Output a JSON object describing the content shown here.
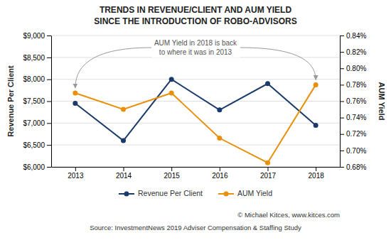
{
  "chart_data": {
    "type": "line",
    "title": "TRENDS IN REVENUE/CLIENT AND AUM YIELD",
    "subtitle": "SINCE THE INTRODUCTION OF ROBO-ADVISORS",
    "x": [
      2013,
      2014,
      2015,
      2016,
      2017,
      2018
    ],
    "series": [
      {
        "name": "Revenue Per Client",
        "color": "#1a3a6b",
        "marker": "circle",
        "values": [
          7450,
          6600,
          8000,
          7300,
          7900,
          6950
        ]
      },
      {
        "name": "AUM Yield",
        "color": "#e8900a",
        "marker": "circle",
        "axis": "y2",
        "values": [
          0.0077,
          0.0075,
          0.0077,
          0.00715,
          0.00685,
          0.0078
        ]
      }
    ],
    "xlim": [
      2012.5,
      2018.5
    ],
    "xticks": [
      2013,
      2014,
      2015,
      2016,
      2017,
      2018
    ],
    "y_label": "Revenue Per Client",
    "ylim": [
      6000,
      9000
    ],
    "yticks": [
      {
        "value": 6000,
        "label": "$6,000"
      },
      {
        "value": 6500,
        "label": "$6,500"
      },
      {
        "value": 7000,
        "label": "$7,000"
      },
      {
        "value": 7500,
        "label": "$7,500"
      },
      {
        "value": 8000,
        "label": "$8,000"
      },
      {
        "value": 8500,
        "label": "$8,500"
      },
      {
        "value": 9000,
        "label": "$9,000"
      }
    ],
    "y2_label": "AUM Yield",
    "y2lim": [
      0.0068,
      0.0084
    ],
    "y2ticks": [
      {
        "value": 0.0068,
        "label": "0.68%"
      },
      {
        "value": 0.007,
        "label": "0.70%"
      },
      {
        "value": 0.0072,
        "label": "0.72%"
      },
      {
        "value": 0.0074,
        "label": "0.74%"
      },
      {
        "value": 0.0076,
        "label": "0.76%"
      },
      {
        "value": 0.0078,
        "label": "0.78%"
      },
      {
        "value": 0.008,
        "label": "0.80%"
      },
      {
        "value": 0.0082,
        "label": "0.82%"
      },
      {
        "value": 0.0084,
        "label": "0.84%"
      }
    ],
    "grid": true,
    "legend": "bottom",
    "annotations": [
      "AUM Yield in 2018 is back\nto where it was in 2013"
    ],
    "footer": [
      "© Michael Kitces, www.kitces.com",
      "Source: InvestmentNews 2019 Adviser Compensation & Staffing Study"
    ]
  }
}
